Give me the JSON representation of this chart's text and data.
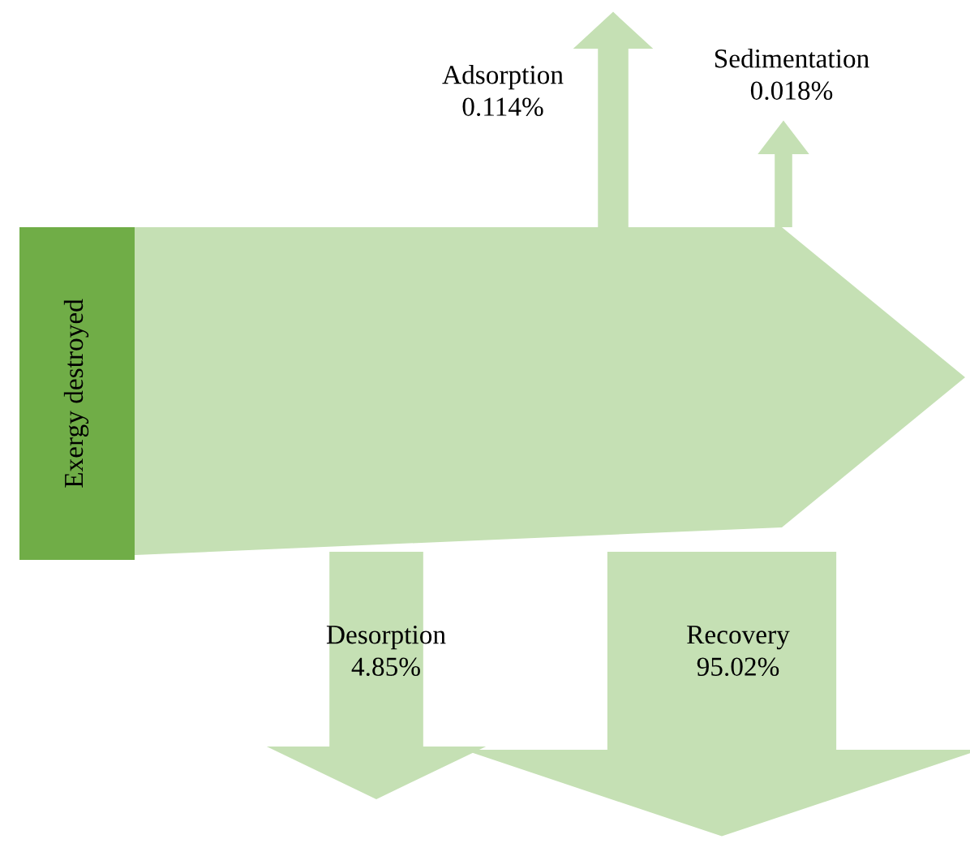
{
  "chart_data": {
    "type": "other",
    "categories": [
      "Adsorption",
      "Sedimentation",
      "Desorption",
      "Recovery"
    ],
    "values": [
      0.114,
      0.018,
      4.85,
      95.02
    ],
    "value_labels": [
      "0.114%",
      "0.018%",
      "4.85%",
      "95.02%"
    ],
    "annotations": [
      "Exergy destroyed"
    ],
    "colors": [
      "#c5e0b4",
      "#c5e0b4",
      "#c5e0b4",
      "#c5e0b4"
    ]
  }
}
